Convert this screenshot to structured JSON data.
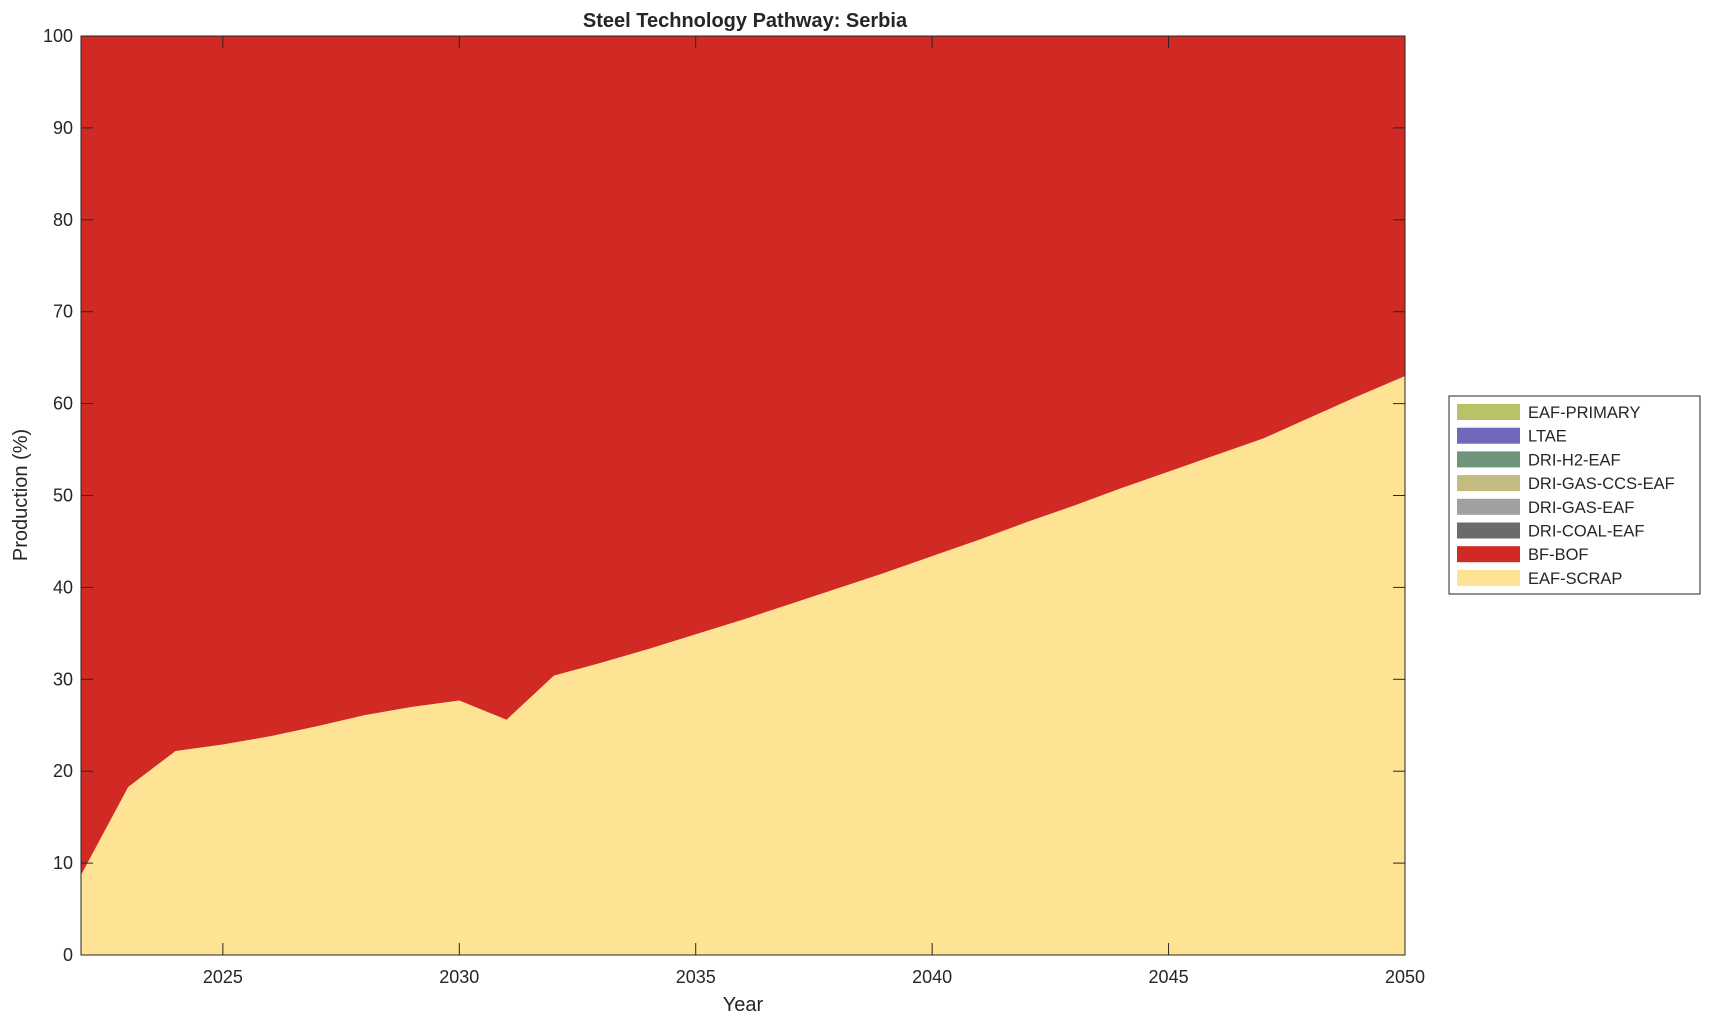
{
  "chart_data": {
    "type": "area",
    "stacked": true,
    "title": "Steel Technology Pathway: Serbia",
    "xlabel": "Year",
    "ylabel": "Production (%)",
    "xlim": [
      2022,
      2050
    ],
    "ylim": [
      0,
      100
    ],
    "xticks": [
      2025,
      2030,
      2035,
      2040,
      2045,
      2050
    ],
    "yticks": [
      0,
      10,
      20,
      30,
      40,
      50,
      60,
      70,
      80,
      90,
      100
    ],
    "grid": false,
    "legend_position": "outside-right",
    "x": [
      2022,
      2023,
      2024,
      2025,
      2026,
      2027,
      2028,
      2029,
      2030,
      2031,
      2032,
      2033,
      2034,
      2035,
      2036,
      2037,
      2038,
      2039,
      2040,
      2041,
      2042,
      2043,
      2044,
      2045,
      2046,
      2047,
      2048,
      2049,
      2050
    ],
    "series": [
      {
        "name": "EAF-SCRAP",
        "color": "#FEE394",
        "values": [
          8.7,
          18.3,
          22.2,
          22.9,
          23.8,
          24.9,
          26.1,
          27.0,
          27.7,
          25.6,
          30.4,
          31.8,
          33.3,
          34.9,
          36.5,
          38.2,
          39.9,
          41.6,
          43.4,
          45.2,
          47.1,
          48.9,
          50.8,
          52.6,
          54.4,
          56.2,
          58.5,
          60.8,
          63.0
        ]
      },
      {
        "name": "BF-BOF",
        "color": "#D12A24",
        "values": [
          91.3,
          81.7,
          77.8,
          77.1,
          76.2,
          75.1,
          73.9,
          73.0,
          72.3,
          74.4,
          69.6,
          68.2,
          66.7,
          65.1,
          63.5,
          61.8,
          60.1,
          58.4,
          56.6,
          54.8,
          52.9,
          51.1,
          49.2,
          47.4,
          45.6,
          43.8,
          41.5,
          39.2,
          37.0
        ]
      },
      {
        "name": "DRI-COAL-EAF",
        "color": "#6B6B6B",
        "values": [
          0,
          0,
          0,
          0,
          0,
          0,
          0,
          0,
          0,
          0,
          0,
          0,
          0,
          0,
          0,
          0,
          0,
          0,
          0,
          0,
          0,
          0,
          0,
          0,
          0,
          0,
          0,
          0,
          0
        ]
      },
      {
        "name": "DRI-GAS-EAF",
        "color": "#A0A0A0",
        "values": [
          0,
          0,
          0,
          0,
          0,
          0,
          0,
          0,
          0,
          0,
          0,
          0,
          0,
          0,
          0,
          0,
          0,
          0,
          0,
          0,
          0,
          0,
          0,
          0,
          0,
          0,
          0,
          0,
          0
        ]
      },
      {
        "name": "DRI-GAS-CCS-EAF",
        "color": "#C4BB80",
        "values": [
          0,
          0,
          0,
          0,
          0,
          0,
          0,
          0,
          0,
          0,
          0,
          0,
          0,
          0,
          0,
          0,
          0,
          0,
          0,
          0,
          0,
          0,
          0,
          0,
          0,
          0,
          0,
          0,
          0
        ]
      },
      {
        "name": "DRI-H2-EAF",
        "color": "#6E9479",
        "values": [
          0,
          0,
          0,
          0,
          0,
          0,
          0,
          0,
          0,
          0,
          0,
          0,
          0,
          0,
          0,
          0,
          0,
          0,
          0,
          0,
          0,
          0,
          0,
          0,
          0,
          0,
          0,
          0,
          0
        ]
      },
      {
        "name": "LTAE",
        "color": "#7068BB",
        "values": [
          0,
          0,
          0,
          0,
          0,
          0,
          0,
          0,
          0,
          0,
          0,
          0,
          0,
          0,
          0,
          0,
          0,
          0,
          0,
          0,
          0,
          0,
          0,
          0,
          0,
          0,
          0,
          0,
          0
        ]
      },
      {
        "name": "EAF-PRIMARY",
        "color": "#BAC268",
        "values": [
          0,
          0,
          0,
          0,
          0,
          0,
          0,
          0,
          0,
          0,
          0,
          0,
          0,
          0,
          0,
          0,
          0,
          0,
          0,
          0,
          0,
          0,
          0,
          0,
          0,
          0,
          0,
          0,
          0
        ]
      }
    ],
    "legend_order": [
      "EAF-PRIMARY",
      "LTAE",
      "DRI-H2-EAF",
      "DRI-GAS-CCS-EAF",
      "DRI-GAS-EAF",
      "DRI-COAL-EAF",
      "BF-BOF",
      "EAF-SCRAP"
    ]
  }
}
